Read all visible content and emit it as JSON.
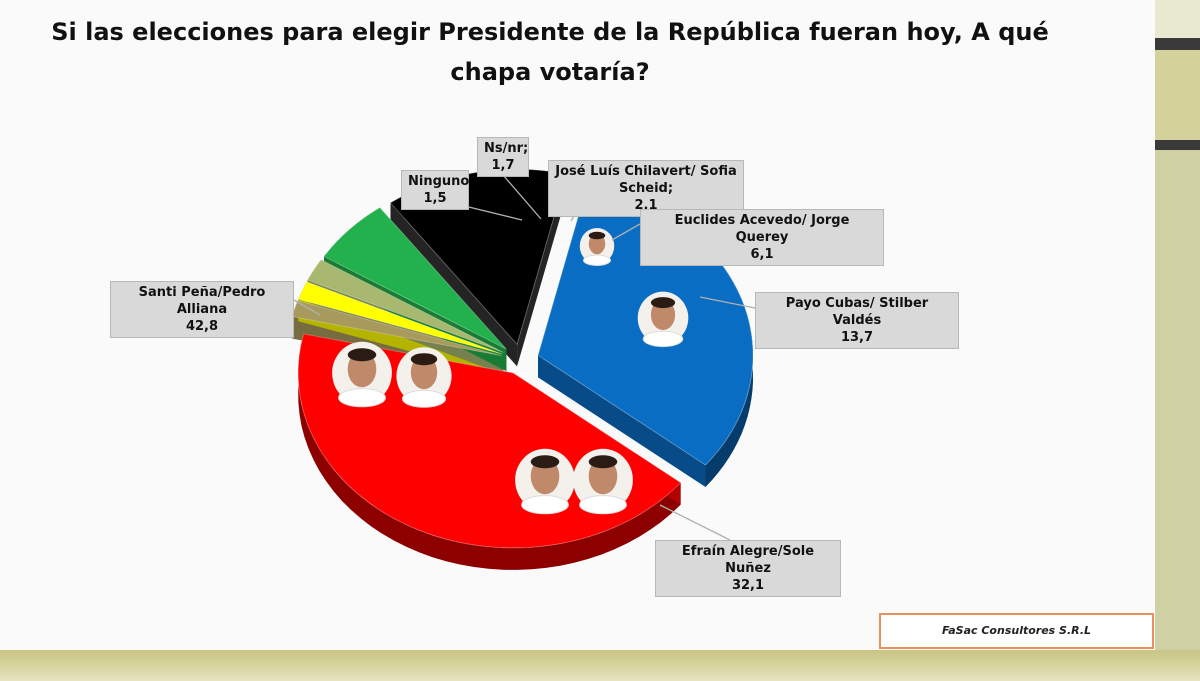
{
  "title": "Si las elecciones para elegir Presidente de la República fueran hoy, A qué chapa votaría?",
  "source": "FaSac Consultores S.R.L",
  "chart_data": {
    "type": "pie",
    "title": "Si las elecciones para elegir Presidente de la República fueran hoy, A qué chapa votaría?",
    "slices": [
      {
        "label": "Payo Cubas/ Stilber Valdés",
        "value": 13.7,
        "display": "13,7",
        "color": "#000000"
      },
      {
        "label": "Efraín Alegre/Sole Nuñez",
        "value": 32.1,
        "display": "32,1",
        "color": "#0a6dc4"
      },
      {
        "label": "Santi Peña/Pedro Alliana",
        "value": 42.8,
        "display": "42,8",
        "color": "#ff0000"
      },
      {
        "label": "Ninguno",
        "value": 1.5,
        "display": "1,5",
        "color": "#a89a5c"
      },
      {
        "label": "Ns/nr;",
        "value": 1.7,
        "display": "1,7",
        "color": "#ffff00"
      },
      {
        "label": "José Luís Chilavert/ Sofia Scheid;",
        "value": 2.1,
        "display": "2,1",
        "color": "#a8b870"
      },
      {
        "label": "Euclides Acevedo/ Jorge Querey",
        "value": 6.1,
        "display": "6,1",
        "color": "#22b14c"
      }
    ]
  }
}
